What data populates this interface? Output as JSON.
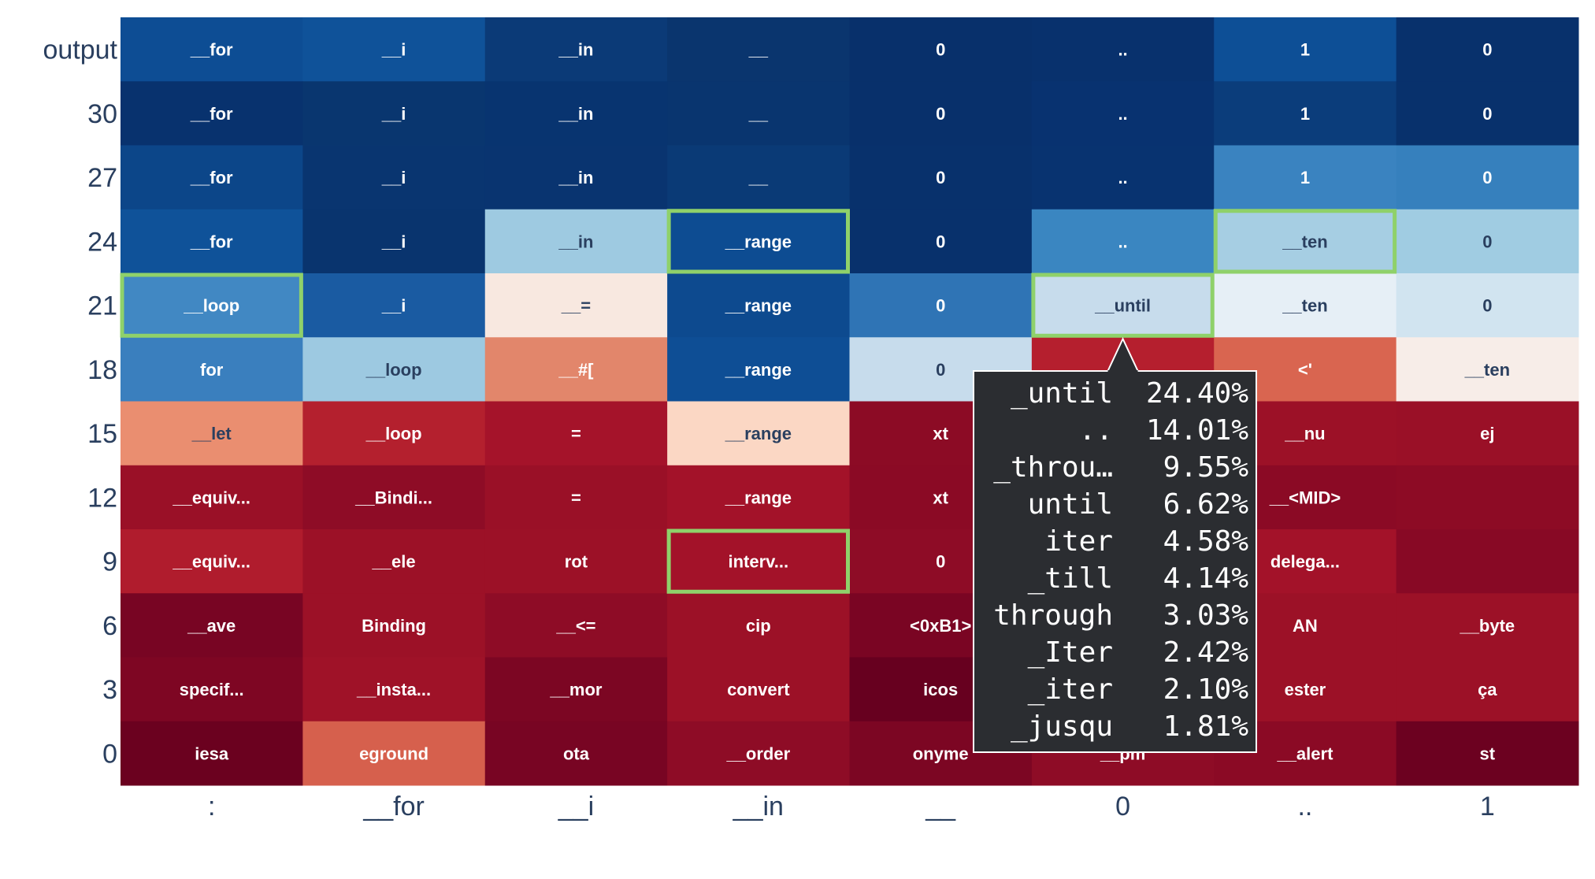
{
  "chart_data": {
    "type": "heatmap",
    "title": "",
    "xlabel": "",
    "ylabel": "",
    "x": [
      ":",
      "__for",
      "__i",
      "__in",
      "__",
      "0",
      "..",
      "1"
    ],
    "y": [
      "output",
      "30",
      "27",
      "24",
      "21",
      "18",
      "15",
      "12",
      "9",
      "6",
      "3",
      "0"
    ],
    "cells": [
      [
        "__for",
        "__i",
        "__in",
        "__",
        "0",
        "..",
        "1",
        "0"
      ],
      [
        "__for",
        "__i",
        "__in",
        "__",
        "0",
        "..",
        "1",
        "0"
      ],
      [
        "__for",
        "__i",
        "__in",
        "__",
        "0",
        "..",
        "1",
        "0"
      ],
      [
        "__for",
        "__i",
        "__in",
        "__range",
        "0",
        "..",
        "__ten",
        "0"
      ],
      [
        "__loop",
        "__i",
        "__=",
        "__range",
        "0",
        "__until",
        "__ten",
        "0"
      ],
      [
        "for",
        "__loop",
        "__#[",
        "__range",
        "0",
        "",
        "<'",
        "__ten"
      ],
      [
        "__let",
        "__loop",
        "=",
        "__range",
        "xt",
        "",
        "__nu",
        "ej"
      ],
      [
        "__equiv...",
        "__Bindi...",
        "=",
        "__range",
        "xt",
        "",
        "__<MID>",
        ""
      ],
      [
        "__equiv...",
        "__ele",
        "rot",
        "interv...",
        "0",
        "",
        "delega...",
        ""
      ],
      [
        "__ave",
        "Binding",
        "__<=",
        "cip",
        "<0xB1>",
        "",
        "AN",
        "__byte"
      ],
      [
        "specif...",
        "__insta...",
        "__mor",
        "convert",
        "icos",
        "",
        "ester",
        "ça"
      ],
      [
        "iesa",
        "eground",
        "ota",
        "__order",
        "onyme",
        "__pm",
        "__alert",
        "st"
      ]
    ],
    "colors": [
      [
        "#0d4d94",
        "#0f5299",
        "#0b3a77",
        "#0a356e",
        "#08306b",
        "#08316d",
        "#0d4f96",
        "#08316c"
      ],
      [
        "#08326e",
        "#09366f",
        "#083470",
        "#09356f",
        "#08306b",
        "#083270",
        "#0b3d7b",
        "#08316c"
      ],
      [
        "#0c4689",
        "#093570",
        "#093470",
        "#0a3a76",
        "#08316c",
        "#083370",
        "#3a83c0",
        "#3680bd"
      ],
      [
        "#0f5299",
        "#09346e",
        "#9ecae1",
        "#0d4c92",
        "#08316c",
        "#3a86c1",
        "#a6cee3",
        "#a0cce2"
      ],
      [
        "#4188c3",
        "#1a5ba2",
        "#f8e8e0",
        "#0d4a8f",
        "#2f74b5",
        "#c7dcec",
        "#e6eff6",
        "#d1e4f0"
      ],
      [
        "#3a7fbe",
        "#9dc9e1",
        "#e2866b",
        "#0e4e95",
        "#c7dcec",
        "#b51f2e",
        "#d96550",
        "#f7ede8"
      ],
      [
        "#ea8e70",
        "#b4202e",
        "#a5132a",
        "#fbd7c4",
        "#8c0b25",
        "#9c1127",
        "#9c1127",
        "#9a1027"
      ],
      [
        "#9a1027",
        "#8e0c26",
        "#9a1027",
        "#a31229",
        "#8b0a25",
        "#8d0b25",
        "#8b0a25",
        "#8d0b25"
      ],
      [
        "#b01c2d",
        "#9c1127",
        "#9c1127",
        "#a31229",
        "#8e0c26",
        "#8e0c26",
        "#a31229",
        "#880925"
      ],
      [
        "#780523",
        "#9c1127",
        "#8e0c26",
        "#9c1127",
        "#7a0523",
        "#8d0b25",
        "#9c1127",
        "#9c1127"
      ],
      [
        "#7e0623",
        "#9f1228",
        "#7c0623",
        "#9c1127",
        "#67001f",
        "#8e0c26",
        "#9c1127",
        "#9c1127"
      ],
      [
        "#6b011f",
        "#d6604d",
        "#780523",
        "#8e0c26",
        "#7c0623",
        "#8e0c26",
        "#8b0a25",
        "#6c0120"
      ]
    ],
    "highlighted_cells": [
      {
        "row": "24",
        "col": "__in"
      },
      {
        "row": "24",
        "col": ".."
      },
      {
        "row": "21",
        "col": ":"
      },
      {
        "row": "21",
        "col": "0"
      },
      {
        "row": "9",
        "col": "__in"
      }
    ],
    "tooltip": {
      "anchor": {
        "row": "21",
        "col": "0"
      },
      "entries": [
        {
          "token": "_until",
          "prob": "24.40%"
        },
        {
          "token": "..",
          "prob": "14.01%"
        },
        {
          "token": "_throu…",
          "prob": "9.55%"
        },
        {
          "token": "until",
          "prob": "6.62%"
        },
        {
          "token": "iter",
          "prob": "4.58%"
        },
        {
          "token": "_till",
          "prob": "4.14%"
        },
        {
          "token": "through",
          "prob": "3.03%"
        },
        {
          "token": "_Iter",
          "prob": "2.42%"
        },
        {
          "token": "_iter",
          "prob": "2.10%"
        },
        {
          "token": "_jusqu",
          "prob": "1.81%"
        }
      ]
    },
    "highlight_color": "#8fd16a",
    "tooltip_bg": "#2b2d31"
  }
}
